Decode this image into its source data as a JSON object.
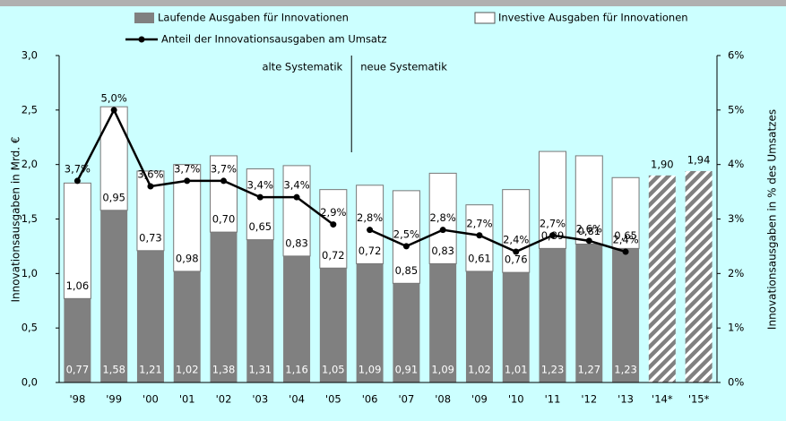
{
  "chart_data": {
    "type": "bar",
    "categories": [
      "'98",
      "'99",
      "'00",
      "'01",
      "'02",
      "'03",
      "'04",
      "'05",
      "'06",
      "'07",
      "'08",
      "'09",
      "'10",
      "'11",
      "'12",
      "'13",
      "'14*",
      "'15*"
    ],
    "series": [
      {
        "name": "Laufende Ausgaben für Innovationen",
        "color": "#808080",
        "values": [
          0.77,
          1.58,
          1.21,
          1.02,
          1.38,
          1.31,
          1.16,
          1.05,
          1.09,
          0.91,
          1.09,
          1.02,
          1.01,
          1.23,
          1.27,
          1.23,
          null,
          null
        ],
        "value_labels": [
          "0,77",
          "1,58",
          "1,21",
          "1,02",
          "1,38",
          "1,31",
          "1,16",
          "1,05",
          "1,09",
          "0,91",
          "1,09",
          "1,02",
          "1,01",
          "1,23",
          "1,27",
          "1,23",
          null,
          null
        ]
      },
      {
        "name": "Investive Ausgaben für Innovationen",
        "color": "#ffffff",
        "values": [
          1.06,
          0.95,
          0.73,
          0.98,
          0.7,
          0.65,
          0.83,
          0.72,
          0.72,
          0.85,
          0.83,
          0.61,
          0.76,
          0.89,
          0.81,
          0.65,
          null,
          null
        ],
        "value_labels": [
          "1,06",
          "0,95",
          "0,73",
          "0,98",
          "0,70",
          "0,65",
          "0,83",
          "0,72",
          "0,72",
          "0,85",
          "0,83",
          "0,61",
          "0,76",
          "0,89",
          "0,81",
          "0,65",
          null,
          null
        ]
      },
      {
        "name": "Anteil der Innovationsausgaben am Umsatz",
        "color": "#000000",
        "type": "line",
        "axis": "y2",
        "values": [
          3.7,
          5.0,
          3.6,
          3.7,
          3.7,
          3.4,
          3.4,
          2.9,
          2.8,
          2.5,
          2.8,
          2.7,
          2.4,
          2.7,
          2.6,
          2.4,
          null,
          null
        ],
        "value_labels": [
          "3,7%",
          "5,0%",
          "3,6%",
          "3,7%",
          "3,7%",
          "3,4%",
          "3,4%",
          "2,9%",
          "2,8%",
          "2,5%",
          "2,8%",
          "2,7%",
          "2,4%",
          "2,7%",
          "2,6%",
          "2,4%",
          null,
          null
        ]
      },
      {
        "color": "#808080",
        "pattern": "hatched",
        "values": [
          null,
          null,
          null,
          null,
          null,
          null,
          null,
          null,
          null,
          null,
          null,
          null,
          null,
          null,
          null,
          null,
          1.9,
          1.94
        ],
        "value_labels": [
          null,
          null,
          null,
          null,
          null,
          null,
          null,
          null,
          null,
          null,
          null,
          null,
          null,
          null,
          null,
          null,
          "1,90",
          "1,94"
        ]
      }
    ],
    "ylabel": "Innovationsausgaben in Mrd. €",
    "y2label": "Innovationsausgaben in % des Umsatzes",
    "ylim": [
      0,
      3
    ],
    "yticks": [
      {
        "value": 0,
        "label": "0,0"
      },
      {
        "value": 0.5,
        "label": "0,5"
      },
      {
        "value": 1,
        "label": "1,0"
      },
      {
        "value": 1.5,
        "label": "1,5"
      },
      {
        "value": 2,
        "label": "2,0"
      },
      {
        "value": 2.5,
        "label": "2,5"
      },
      {
        "value": 3,
        "label": "3,0"
      }
    ],
    "y2lim": [
      0,
      6
    ],
    "y2ticks": [
      {
        "value": 0,
        "label": "0%"
      },
      {
        "value": 1,
        "label": "1%"
      },
      {
        "value": 2,
        "label": "2%"
      },
      {
        "value": 3,
        "label": "3%"
      },
      {
        "value": 4,
        "label": "4%"
      },
      {
        "value": 5,
        "label": "5%"
      },
      {
        "value": 6,
        "label": "6%"
      }
    ],
    "divider": {
      "after": "'05",
      "labels": [
        "alte Systematik",
        "neue Systematik"
      ]
    }
  }
}
